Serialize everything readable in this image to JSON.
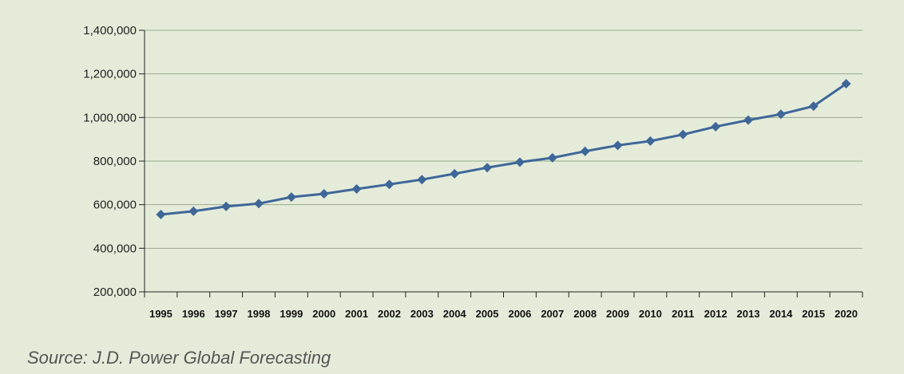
{
  "source_note": "Source: J.D. Power Global Forecasting",
  "colors": {
    "background": "#e4ecd9",
    "line": "#3e6699",
    "marker": "#3e6699",
    "grid": "#9aa88d",
    "axis": "#222222"
  },
  "chart_data": {
    "type": "line",
    "title": "",
    "xlabel": "",
    "ylabel": "",
    "categories": [
      "1995",
      "1996",
      "1997",
      "1998",
      "1999",
      "2000",
      "2001",
      "2002",
      "2003",
      "2004",
      "2005",
      "2006",
      "2007",
      "2008",
      "2009",
      "2010",
      "2011",
      "2012",
      "2013",
      "2014",
      "2015",
      "2020"
    ],
    "series": [
      {
        "marker": "diamond",
        "values": [
          555000,
          570000,
          592000,
          605000,
          635000,
          650000,
          672000,
          693000,
          715000,
          742000,
          770000,
          795000,
          815000,
          845000,
          872000,
          892000,
          922000,
          958000,
          988000,
          1015000,
          1052000,
          1155000
        ]
      }
    ],
    "yticks": [
      200000,
      400000,
      600000,
      800000,
      1000000,
      1200000,
      1400000
    ],
    "ytick_labels": [
      "200,000",
      "400,000",
      "600,000",
      "800,000",
      "1,000,000",
      "1,200,000",
      "1,400,000"
    ],
    "ylim": [
      200000,
      1400000
    ],
    "grid": true,
    "legend": "none"
  }
}
